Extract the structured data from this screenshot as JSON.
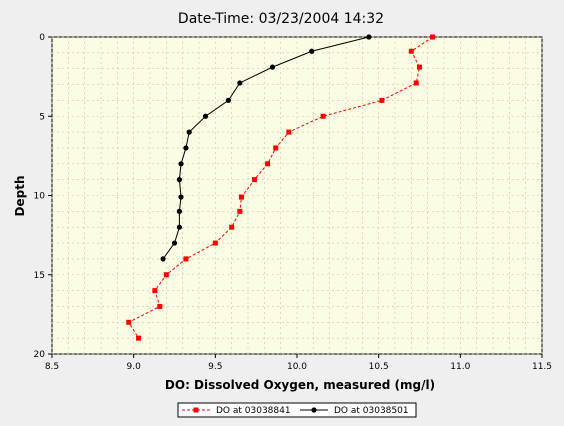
{
  "chart_data": {
    "type": "line",
    "title": "Date-Time: 03/23/2004 14:32",
    "xlabel": "DO: Dissolved Oxygen, measured (mg/l)",
    "ylabel": "Depth",
    "xlim": [
      8.5,
      11.5
    ],
    "ylim": [
      20,
      0
    ],
    "x_ticks": [
      "8.5",
      "9.0",
      "9.5",
      "10.0",
      "10.5",
      "11.0",
      "11.5"
    ],
    "x_tick_values": [
      8.5,
      9.0,
      9.5,
      10.0,
      10.5,
      11.0,
      11.5
    ],
    "y_ticks": [
      "0",
      "5",
      "10",
      "15",
      "20"
    ],
    "y_tick_values": [
      0,
      5,
      10,
      15,
      20
    ],
    "y_inverted": true,
    "grid": true,
    "legend_position": "bottom",
    "colors": {
      "plot_bg": "#fcfce4",
      "grid": "#c8c8a0",
      "red": "#ff0000",
      "black": "#000000"
    },
    "series": [
      {
        "name": "DO at 03038841",
        "color": "#ff0000",
        "marker": "square",
        "line": "dashed",
        "x": [
          10.83,
          10.7,
          10.75,
          10.73,
          10.52,
          10.16,
          9.95,
          9.87,
          9.82,
          9.74,
          9.66,
          9.65,
          9.6,
          9.5,
          9.32,
          9.2,
          9.13,
          9.16,
          8.97,
          9.03
        ],
        "y": [
          0.0,
          0.9,
          1.9,
          2.9,
          4.0,
          5.0,
          6.0,
          7.0,
          8.0,
          9.0,
          10.1,
          11.0,
          12.0,
          13.0,
          14.0,
          15.0,
          16.0,
          17.0,
          18.0,
          19.0
        ]
      },
      {
        "name": "DO at 03038501",
        "color": "#000000",
        "marker": "circle",
        "line": "solid",
        "x": [
          10.44,
          10.09,
          9.85,
          9.65,
          9.58,
          9.44,
          9.34,
          9.32,
          9.29,
          9.28,
          9.29,
          9.28,
          9.28,
          9.25,
          9.18
        ],
        "y": [
          0.0,
          0.9,
          1.9,
          2.9,
          4.0,
          5.0,
          6.0,
          7.0,
          8.0,
          9.0,
          10.1,
          11.0,
          12.0,
          13.0,
          14.0
        ]
      }
    ]
  }
}
